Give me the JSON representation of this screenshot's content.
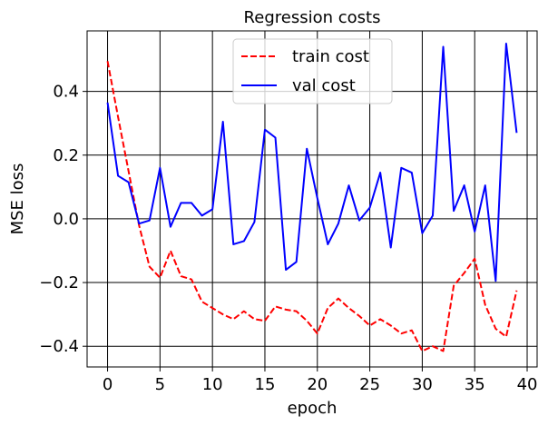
{
  "chart_data": {
    "type": "line",
    "title": "Regression costs",
    "xlabel": "epoch",
    "ylabel": "MSE loss",
    "xlim": [
      -1.95,
      40.95
    ],
    "ylim": [
      -0.465,
      0.59
    ],
    "xticks": [
      0,
      5,
      10,
      15,
      20,
      25,
      30,
      35,
      40
    ],
    "yticks": [
      -0.4,
      -0.2,
      0.0,
      0.2,
      0.4
    ],
    "ytick_labels": [
      "−0.4",
      "−0.2",
      "0.0",
      "0.2",
      "0.4"
    ],
    "grid": true,
    "grid_color": "#000000",
    "legend_position": "upper center",
    "x": [
      0,
      1,
      2,
      3,
      4,
      5,
      6,
      7,
      8,
      9,
      10,
      11,
      12,
      13,
      14,
      15,
      16,
      17,
      18,
      19,
      20,
      21,
      22,
      23,
      24,
      25,
      26,
      27,
      28,
      29,
      30,
      31,
      32,
      33,
      34,
      35,
      36,
      37,
      38,
      39
    ],
    "series": [
      {
        "name": "train cost",
        "color": "#ff0000",
        "style": "dashed",
        "values": [
          0.495,
          0.32,
          0.15,
          -0.02,
          -0.15,
          -0.185,
          -0.1,
          -0.18,
          -0.19,
          -0.26,
          -0.28,
          -0.3,
          -0.315,
          -0.29,
          -0.315,
          -0.32,
          -0.275,
          -0.285,
          -0.29,
          -0.32,
          -0.36,
          -0.28,
          -0.25,
          -0.28,
          -0.305,
          -0.335,
          -0.315,
          -0.335,
          -0.36,
          -0.35,
          -0.415,
          -0.4,
          -0.415,
          -0.21,
          -0.17,
          -0.125,
          -0.27,
          -0.345,
          -0.37,
          -0.225
        ]
      },
      {
        "name": "val cost",
        "color": "#0000ff",
        "style": "solid",
        "values": [
          0.365,
          0.135,
          0.115,
          -0.015,
          -0.005,
          0.16,
          -0.025,
          0.05,
          0.05,
          0.01,
          0.03,
          0.305,
          -0.08,
          -0.07,
          -0.01,
          0.28,
          0.255,
          -0.16,
          -0.135,
          0.22,
          0.065,
          -0.08,
          -0.015,
          0.105,
          -0.005,
          0.035,
          0.145,
          -0.09,
          0.16,
          0.145,
          -0.045,
          0.01,
          0.54,
          0.025,
          0.105,
          -0.04,
          0.105,
          -0.195,
          0.55,
          0.27
        ]
      }
    ]
  }
}
